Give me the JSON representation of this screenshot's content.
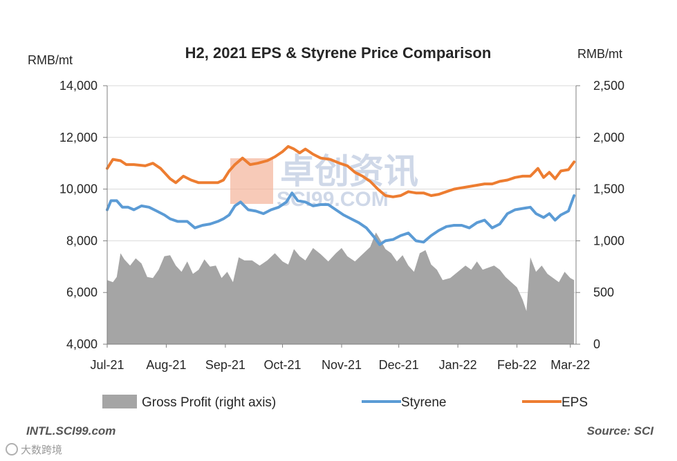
{
  "chart_data": {
    "type": "area+line",
    "title": "H2, 2021 EPS & Styrene Price Comparison",
    "left_axis": {
      "unit": "RMB/mt",
      "ylim": [
        4000,
        14000
      ],
      "ticks": [
        "4,000",
        "6,000",
        "8,000",
        "10,000",
        "12,000",
        "14,000"
      ],
      "tick_values": [
        4000,
        6000,
        8000,
        10000,
        12000,
        14000
      ]
    },
    "right_axis": {
      "unit": "RMB/mt",
      "ylim": [
        0,
        2500
      ],
      "ticks": [
        "0",
        "500",
        "1,000",
        "1,500",
        "2,000",
        "2,500"
      ],
      "tick_values": [
        0,
        500,
        1000,
        1500,
        2000,
        2500
      ]
    },
    "x_ticks": [
      "Jul-21",
      "Aug-21",
      "Sep-21",
      "Oct-21",
      "Nov-21",
      "Dec-21",
      "Jan-22",
      "Feb-22",
      "Mar-22"
    ],
    "x_tick_days": [
      0,
      31,
      62,
      92,
      123,
      153,
      184,
      215,
      243
    ],
    "x_range_days": [
      0,
      246
    ],
    "series": [
      {
        "name": "EPS",
        "axis": "left",
        "color": "#ED7D31",
        "points": [
          [
            0,
            10800
          ],
          [
            3,
            11150
          ],
          [
            7,
            11100
          ],
          [
            10,
            10950
          ],
          [
            14,
            10950
          ],
          [
            20,
            10900
          ],
          [
            24,
            11000
          ],
          [
            28,
            10800
          ],
          [
            33,
            10400
          ],
          [
            36,
            10250
          ],
          [
            40,
            10500
          ],
          [
            44,
            10350
          ],
          [
            48,
            10250
          ],
          [
            53,
            10250
          ],
          [
            58,
            10250
          ],
          [
            61,
            10350
          ],
          [
            64,
            10700
          ],
          [
            67,
            10950
          ],
          [
            71,
            11200
          ],
          [
            75,
            10950
          ],
          [
            79,
            11000
          ],
          [
            84,
            11100
          ],
          [
            88,
            11250
          ],
          [
            92,
            11450
          ],
          [
            95,
            11650
          ],
          [
            98,
            11550
          ],
          [
            101,
            11400
          ],
          [
            104,
            11550
          ],
          [
            108,
            11350
          ],
          [
            112,
            11200
          ],
          [
            117,
            11150
          ],
          [
            122,
            11000
          ],
          [
            126,
            10900
          ],
          [
            130,
            10650
          ],
          [
            134,
            10500
          ],
          [
            138,
            10300
          ],
          [
            142,
            10000
          ],
          [
            146,
            9750
          ],
          [
            150,
            9700
          ],
          [
            154,
            9750
          ],
          [
            158,
            9900
          ],
          [
            162,
            9850
          ],
          [
            166,
            9850
          ],
          [
            170,
            9750
          ],
          [
            174,
            9800
          ],
          [
            178,
            9900
          ],
          [
            182,
            10000
          ],
          [
            186,
            10050
          ],
          [
            190,
            10100
          ],
          [
            194,
            10150
          ],
          [
            198,
            10200
          ],
          [
            202,
            10200
          ],
          [
            206,
            10300
          ],
          [
            210,
            10350
          ],
          [
            214,
            10450
          ],
          [
            218,
            10500
          ],
          [
            222,
            10500
          ],
          [
            226,
            10800
          ],
          [
            229,
            10450
          ],
          [
            232,
            10650
          ],
          [
            235,
            10400
          ],
          [
            238,
            10700
          ],
          [
            242,
            10750
          ],
          [
            245,
            11050
          ]
        ]
      },
      {
        "name": "Styrene",
        "axis": "left",
        "color": "#5B9BD5",
        "points": [
          [
            0,
            9200
          ],
          [
            2,
            9550
          ],
          [
            5,
            9550
          ],
          [
            8,
            9300
          ],
          [
            11,
            9300
          ],
          [
            14,
            9200
          ],
          [
            18,
            9350
          ],
          [
            22,
            9300
          ],
          [
            26,
            9150
          ],
          [
            30,
            9000
          ],
          [
            33,
            8850
          ],
          [
            37,
            8750
          ],
          [
            42,
            8750
          ],
          [
            46,
            8500
          ],
          [
            50,
            8600
          ],
          [
            54,
            8650
          ],
          [
            58,
            8750
          ],
          [
            61,
            8850
          ],
          [
            64,
            9000
          ],
          [
            67,
            9350
          ],
          [
            70,
            9500
          ],
          [
            74,
            9200
          ],
          [
            78,
            9150
          ],
          [
            82,
            9050
          ],
          [
            86,
            9200
          ],
          [
            90,
            9300
          ],
          [
            94,
            9500
          ],
          [
            97,
            9850
          ],
          [
            100,
            9550
          ],
          [
            104,
            9500
          ],
          [
            108,
            9350
          ],
          [
            112,
            9400
          ],
          [
            116,
            9400
          ],
          [
            120,
            9200
          ],
          [
            124,
            9000
          ],
          [
            128,
            8850
          ],
          [
            132,
            8700
          ],
          [
            136,
            8500
          ],
          [
            140,
            8150
          ],
          [
            143,
            7850
          ],
          [
            146,
            8000
          ],
          [
            150,
            8050
          ],
          [
            154,
            8200
          ],
          [
            158,
            8300
          ],
          [
            162,
            8000
          ],
          [
            166,
            7950
          ],
          [
            170,
            8200
          ],
          [
            174,
            8400
          ],
          [
            178,
            8550
          ],
          [
            182,
            8600
          ],
          [
            186,
            8600
          ],
          [
            190,
            8500
          ],
          [
            194,
            8700
          ],
          [
            198,
            8800
          ],
          [
            202,
            8500
          ],
          [
            206,
            8650
          ],
          [
            210,
            9050
          ],
          [
            214,
            9200
          ],
          [
            218,
            9250
          ],
          [
            222,
            9300
          ],
          [
            225,
            9050
          ],
          [
            229,
            8900
          ],
          [
            232,
            9050
          ],
          [
            235,
            8800
          ],
          [
            238,
            9000
          ],
          [
            242,
            9150
          ],
          [
            245,
            9750
          ]
        ]
      },
      {
        "name": "Gross Profit (right axis)",
        "axis": "right",
        "color": "#A5A5A5",
        "points": [
          [
            0,
            620
          ],
          [
            3,
            600
          ],
          [
            5,
            650
          ],
          [
            7,
            880
          ],
          [
            9,
            820
          ],
          [
            12,
            760
          ],
          [
            15,
            830
          ],
          [
            18,
            780
          ],
          [
            21,
            650
          ],
          [
            24,
            640
          ],
          [
            27,
            720
          ],
          [
            30,
            850
          ],
          [
            33,
            860
          ],
          [
            36,
            760
          ],
          [
            39,
            700
          ],
          [
            42,
            800
          ],
          [
            45,
            680
          ],
          [
            48,
            720
          ],
          [
            51,
            820
          ],
          [
            54,
            750
          ],
          [
            57,
            760
          ],
          [
            60,
            640
          ],
          [
            63,
            700
          ],
          [
            66,
            600
          ],
          [
            69,
            840
          ],
          [
            72,
            810
          ],
          [
            76,
            810
          ],
          [
            80,
            760
          ],
          [
            84,
            810
          ],
          [
            88,
            880
          ],
          [
            92,
            800
          ],
          [
            95,
            770
          ],
          [
            98,
            920
          ],
          [
            101,
            850
          ],
          [
            104,
            810
          ],
          [
            108,
            930
          ],
          [
            112,
            870
          ],
          [
            116,
            800
          ],
          [
            120,
            880
          ],
          [
            123,
            930
          ],
          [
            126,
            850
          ],
          [
            130,
            800
          ],
          [
            134,
            870
          ],
          [
            138,
            940
          ],
          [
            141,
            1080
          ],
          [
            143,
            1020
          ],
          [
            146,
            920
          ],
          [
            149,
            880
          ],
          [
            152,
            800
          ],
          [
            155,
            860
          ],
          [
            158,
            760
          ],
          [
            161,
            700
          ],
          [
            164,
            880
          ],
          [
            167,
            910
          ],
          [
            170,
            770
          ],
          [
            173,
            720
          ],
          [
            176,
            620
          ],
          [
            180,
            640
          ],
          [
            184,
            700
          ],
          [
            188,
            760
          ],
          [
            191,
            720
          ],
          [
            194,
            800
          ],
          [
            197,
            720
          ],
          [
            200,
            740
          ],
          [
            203,
            760
          ],
          [
            206,
            720
          ],
          [
            209,
            650
          ],
          [
            212,
            600
          ],
          [
            215,
            550
          ],
          [
            218,
            430
          ],
          [
            220,
            320
          ],
          [
            222,
            840
          ],
          [
            225,
            700
          ],
          [
            228,
            760
          ],
          [
            231,
            680
          ],
          [
            234,
            640
          ],
          [
            237,
            600
          ],
          [
            240,
            700
          ],
          [
            243,
            640
          ],
          [
            245,
            620
          ]
        ]
      }
    ],
    "legend": [
      "Gross Profit (right axis)",
      "Styrene",
      "EPS"
    ],
    "legend_position": "bottom",
    "source_left": "INTL.SCI99.com",
    "source_right": "Source: SCI",
    "watermark": "卓创资讯 SCI99.COM",
    "badge": "大数跨境"
  }
}
